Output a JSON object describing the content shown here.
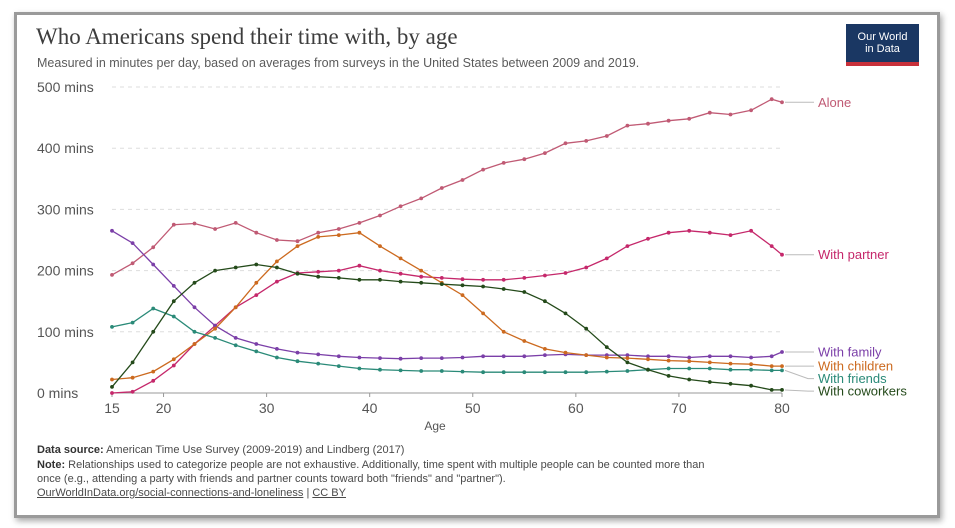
{
  "header": {
    "title": "Who Americans spend their time with, by age",
    "subtitle": "Measured in minutes per day, based on averages from surveys in the United States between 2009 and 2019.",
    "logo_line1": "Our World",
    "logo_line2": "in Data"
  },
  "footer": {
    "source_label": "Data source:",
    "source_text": "American Time Use Survey (2009-2019) and Lindberg (2017)",
    "note_label": "Note:",
    "note_line1": "Relationships used to categorize people are not exhaustive. Additionally, time spent with multiple people can be counted more than",
    "note_line2": "once (e.g., attending a party with friends and partner counts toward both \"friends\" and \"partner\").",
    "link_text": "OurWorldInData.org/social-connections-and-loneliness",
    "separator": "|",
    "license": "CC BY"
  },
  "chart_data": {
    "type": "line",
    "xlabel": "Age",
    "ylabel": "",
    "xlim": [
      15,
      80
    ],
    "ylim": [
      0,
      500
    ],
    "x_ticks": [
      15,
      20,
      30,
      40,
      50,
      60,
      70,
      80
    ],
    "x_tick_labels": [
      "15",
      "20",
      "30",
      "40",
      "50",
      "60",
      "70",
      "80"
    ],
    "y_ticks": [
      0,
      100,
      200,
      300,
      400,
      500
    ],
    "y_tick_labels": [
      "0 mins",
      "100 mins",
      "200 mins",
      "300 mins",
      "400 mins",
      "500 mins"
    ],
    "grid": "horizontal dashed",
    "legend": "labels at right end of lines",
    "series": [
      {
        "name": "Alone",
        "color": "#c05a74",
        "label_value": 475,
        "points": [
          [
            15,
            193
          ],
          [
            17,
            212
          ],
          [
            19,
            238
          ],
          [
            21,
            275
          ],
          [
            23,
            277
          ],
          [
            25,
            268
          ],
          [
            27,
            278
          ],
          [
            29,
            262
          ],
          [
            31,
            250
          ],
          [
            33,
            248
          ],
          [
            35,
            262
          ],
          [
            37,
            268
          ],
          [
            39,
            278
          ],
          [
            41,
            290
          ],
          [
            43,
            305
          ],
          [
            45,
            318
          ],
          [
            47,
            335
          ],
          [
            49,
            348
          ],
          [
            51,
            365
          ],
          [
            53,
            376
          ],
          [
            55,
            382
          ],
          [
            57,
            392
          ],
          [
            59,
            408
          ],
          [
            61,
            412
          ],
          [
            63,
            420
          ],
          [
            65,
            437
          ],
          [
            67,
            440
          ],
          [
            69,
            445
          ],
          [
            71,
            448
          ],
          [
            73,
            458
          ],
          [
            75,
            455
          ],
          [
            77,
            462
          ],
          [
            79,
            480
          ],
          [
            80,
            475
          ]
        ]
      },
      {
        "name": "With partner",
        "color": "#c5286b",
        "label_value": 226,
        "points": [
          [
            15,
            0
          ],
          [
            17,
            2
          ],
          [
            19,
            20
          ],
          [
            21,
            45
          ],
          [
            23,
            80
          ],
          [
            25,
            110
          ],
          [
            27,
            140
          ],
          [
            29,
            160
          ],
          [
            31,
            182
          ],
          [
            33,
            196
          ],
          [
            35,
            198
          ],
          [
            37,
            200
          ],
          [
            39,
            208
          ],
          [
            41,
            200
          ],
          [
            43,
            195
          ],
          [
            45,
            190
          ],
          [
            47,
            188
          ],
          [
            49,
            186
          ],
          [
            51,
            185
          ],
          [
            53,
            185
          ],
          [
            55,
            188
          ],
          [
            57,
            192
          ],
          [
            59,
            196
          ],
          [
            61,
            205
          ],
          [
            63,
            220
          ],
          [
            65,
            240
          ],
          [
            67,
            252
          ],
          [
            69,
            262
          ],
          [
            71,
            265
          ],
          [
            73,
            262
          ],
          [
            75,
            258
          ],
          [
            77,
            265
          ],
          [
            79,
            240
          ],
          [
            80,
            226
          ]
        ]
      },
      {
        "name": "With family",
        "color": "#7b3fa8",
        "label_value": 67,
        "points": [
          [
            15,
            265
          ],
          [
            17,
            245
          ],
          [
            19,
            210
          ],
          [
            21,
            175
          ],
          [
            23,
            140
          ],
          [
            25,
            110
          ],
          [
            27,
            90
          ],
          [
            29,
            80
          ],
          [
            31,
            72
          ],
          [
            33,
            66
          ],
          [
            35,
            63
          ],
          [
            37,
            60
          ],
          [
            39,
            58
          ],
          [
            41,
            57
          ],
          [
            43,
            56
          ],
          [
            45,
            57
          ],
          [
            47,
            57
          ],
          [
            49,
            58
          ],
          [
            51,
            60
          ],
          [
            53,
            60
          ],
          [
            55,
            60
          ],
          [
            57,
            62
          ],
          [
            59,
            63
          ],
          [
            61,
            62
          ],
          [
            63,
            62
          ],
          [
            65,
            62
          ],
          [
            67,
            60
          ],
          [
            69,
            60
          ],
          [
            71,
            58
          ],
          [
            73,
            60
          ],
          [
            75,
            60
          ],
          [
            77,
            58
          ],
          [
            79,
            60
          ],
          [
            80,
            67
          ]
        ]
      },
      {
        "name": "With children",
        "color": "#cc6a1f",
        "label_value": 44,
        "points": [
          [
            15,
            22
          ],
          [
            17,
            25
          ],
          [
            19,
            35
          ],
          [
            21,
            55
          ],
          [
            23,
            80
          ],
          [
            25,
            105
          ],
          [
            27,
            140
          ],
          [
            29,
            180
          ],
          [
            31,
            215
          ],
          [
            33,
            240
          ],
          [
            35,
            255
          ],
          [
            37,
            258
          ],
          [
            39,
            262
          ],
          [
            41,
            240
          ],
          [
            43,
            220
          ],
          [
            45,
            200
          ],
          [
            47,
            180
          ],
          [
            49,
            160
          ],
          [
            51,
            130
          ],
          [
            53,
            100
          ],
          [
            55,
            85
          ],
          [
            57,
            72
          ],
          [
            59,
            66
          ],
          [
            61,
            62
          ],
          [
            63,
            58
          ],
          [
            65,
            57
          ],
          [
            67,
            55
          ],
          [
            69,
            53
          ],
          [
            71,
            52
          ],
          [
            73,
            50
          ],
          [
            75,
            48
          ],
          [
            77,
            47
          ],
          [
            79,
            44
          ],
          [
            80,
            44
          ]
        ]
      },
      {
        "name": "With friends",
        "color": "#2a8a78",
        "label_value": 37,
        "points": [
          [
            15,
            108
          ],
          [
            17,
            115
          ],
          [
            19,
            138
          ],
          [
            21,
            125
          ],
          [
            23,
            100
          ],
          [
            25,
            90
          ],
          [
            27,
            78
          ],
          [
            29,
            68
          ],
          [
            31,
            58
          ],
          [
            33,
            52
          ],
          [
            35,
            48
          ],
          [
            37,
            44
          ],
          [
            39,
            40
          ],
          [
            41,
            38
          ],
          [
            43,
            37
          ],
          [
            45,
            36
          ],
          [
            47,
            36
          ],
          [
            49,
            35
          ],
          [
            51,
            34
          ],
          [
            53,
            34
          ],
          [
            55,
            34
          ],
          [
            57,
            34
          ],
          [
            59,
            34
          ],
          [
            61,
            34
          ],
          [
            63,
            35
          ],
          [
            65,
            36
          ],
          [
            67,
            38
          ],
          [
            69,
            40
          ],
          [
            71,
            40
          ],
          [
            73,
            40
          ],
          [
            75,
            38
          ],
          [
            77,
            38
          ],
          [
            79,
            37
          ],
          [
            80,
            37
          ]
        ]
      },
      {
        "name": "With coworkers",
        "color": "#244a1a",
        "label_value": 5,
        "points": [
          [
            15,
            10
          ],
          [
            17,
            50
          ],
          [
            19,
            100
          ],
          [
            21,
            150
          ],
          [
            23,
            180
          ],
          [
            25,
            200
          ],
          [
            27,
            205
          ],
          [
            29,
            210
          ],
          [
            31,
            205
          ],
          [
            33,
            195
          ],
          [
            35,
            190
          ],
          [
            37,
            188
          ],
          [
            39,
            185
          ],
          [
            41,
            185
          ],
          [
            43,
            182
          ],
          [
            45,
            180
          ],
          [
            47,
            178
          ],
          [
            49,
            176
          ],
          [
            51,
            174
          ],
          [
            53,
            170
          ],
          [
            55,
            165
          ],
          [
            57,
            150
          ],
          [
            59,
            130
          ],
          [
            61,
            105
          ],
          [
            63,
            75
          ],
          [
            65,
            50
          ],
          [
            67,
            38
          ],
          [
            69,
            28
          ],
          [
            71,
            22
          ],
          [
            73,
            18
          ],
          [
            75,
            15
          ],
          [
            77,
            12
          ],
          [
            79,
            5
          ],
          [
            80,
            5
          ]
        ]
      }
    ]
  }
}
